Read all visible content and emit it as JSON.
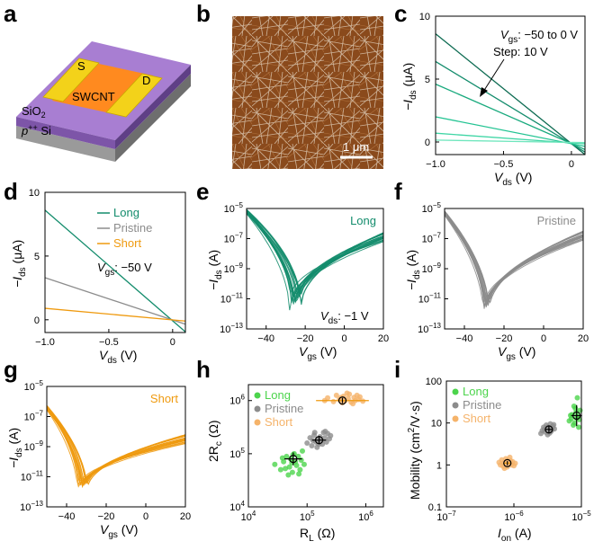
{
  "colors": {
    "long": "#138c6c",
    "pristine": "#8c8c8c",
    "short": "#ef9a0f",
    "long_point": "#4cd44c",
    "pristine_point": "#8c8c8c",
    "short_point": "#f5b36a",
    "substrate": "#b4b4b4",
    "oxide": "#a87ed2",
    "swcnt": "#ff8a1f",
    "electrode": "#f3d21a"
  },
  "panels": {
    "a": {
      "label": "a",
      "texts": {
        "source": "S",
        "drain": "D",
        "channel": "SWCNT",
        "oxide": "SiO",
        "oxide_sub": "2",
        "substrate_pre": "p",
        "substrate_sup": "++",
        "substrate_post": " Si"
      }
    },
    "b": {
      "label": "b",
      "scale_bar": "1 μm"
    },
    "c": {
      "label": "c"
    },
    "d": {
      "label": "d"
    },
    "e": {
      "label": "e"
    },
    "f": {
      "label": "f"
    },
    "g": {
      "label": "g"
    },
    "h": {
      "label": "h"
    },
    "i": {
      "label": "i"
    }
  },
  "chart_data": [
    {
      "id": "c",
      "type": "line",
      "xlabel": "V",
      "xlabel_sub": "ds",
      "xlabel_unit": " (V)",
      "ylabel_pre": "−I",
      "ylabel_sub": "ds",
      "ylabel_unit": " (μA)",
      "xlim": [
        -1.0,
        0.1
      ],
      "ylim": [
        -1,
        10
      ],
      "xticks": [
        -1.0,
        -0.5,
        0
      ],
      "xtick_labels": [
        "−1.0",
        "−0.5",
        "0"
      ],
      "yticks": [
        0,
        5,
        10
      ],
      "ytick_labels": [
        "0",
        "5",
        "10"
      ],
      "annotation_line1_pre": "V",
      "annotation_line1_sub": "gs",
      "annotation_line1_post": ": −50 to 0 V",
      "annotation_line2": "Step: 10 V",
      "series": [
        {
          "name": "Vgs −50 V",
          "x": [
            -1.0,
            0.1
          ],
          "y": [
            8.6,
            -1.0
          ],
          "color": "#0d6b52"
        },
        {
          "name": "Vgs −40 V",
          "x": [
            -1.0,
            0.1
          ],
          "y": [
            6.4,
            -0.8
          ],
          "color": "#138c6c"
        },
        {
          "name": "Vgs −30 V",
          "x": [
            -1.0,
            0.1
          ],
          "y": [
            4.6,
            -0.6
          ],
          "color": "#1aaa7e"
        },
        {
          "name": "Vgs −20 V",
          "x": [
            -1.0,
            0.1
          ],
          "y": [
            2.0,
            -0.35
          ],
          "color": "#24c493"
        },
        {
          "name": "Vgs −10 V",
          "x": [
            -1.0,
            0.1
          ],
          "y": [
            0.7,
            -0.15
          ],
          "color": "#3fd6a5"
        },
        {
          "name": "Vgs 0 V",
          "x": [
            -1.0,
            0.1
          ],
          "y": [
            0.15,
            -0.05
          ],
          "color": "#6fe6bd"
        }
      ]
    },
    {
      "id": "d",
      "type": "line",
      "xlabel": "V",
      "xlabel_sub": "ds",
      "xlabel_unit": " (V)",
      "ylabel_pre": "−I",
      "ylabel_sub": "ds",
      "ylabel_unit": " (μA)",
      "xlim": [
        -1.0,
        0.1
      ],
      "ylim": [
        -1,
        10
      ],
      "xticks": [
        -1.0,
        -0.5,
        0
      ],
      "xtick_labels": [
        "−1.0",
        "−0.5",
        "0"
      ],
      "yticks": [
        0,
        5,
        10
      ],
      "ytick_labels": [
        "0",
        "5",
        "10"
      ],
      "annotation_pre": "V",
      "annotation_sub": "gs",
      "annotation_post": ": −50 V",
      "series": [
        {
          "name": "Long",
          "x": [
            -1.0,
            0.1
          ],
          "y": [
            8.6,
            -0.95
          ],
          "color": "#138c6c"
        },
        {
          "name": "Pristine",
          "x": [
            -1.0,
            0.1
          ],
          "y": [
            3.3,
            -0.35
          ],
          "color": "#8c8c8c"
        },
        {
          "name": "Short",
          "x": [
            -1.0,
            0.1
          ],
          "y": [
            0.9,
            -0.1
          ],
          "color": "#ef9a0f"
        }
      ]
    },
    {
      "id": "e",
      "type": "line",
      "scale": "log-y",
      "title": "Long",
      "title_color": "#138c6c",
      "xlabel": "V",
      "xlabel_sub": "gs",
      "xlabel_unit": " (V)",
      "ylabel_pre": "−I",
      "ylabel_sub": "ds",
      "ylabel_unit": " (A)",
      "xlim": [
        -50,
        20
      ],
      "ylim_exp": [
        -13,
        -5
      ],
      "xticks": [
        -40,
        -20,
        0,
        20
      ],
      "xtick_labels": [
        "−40",
        "−20",
        "0",
        "20"
      ],
      "ytick_exps": [
        -5,
        -7,
        -9,
        -11,
        -13
      ],
      "annotation_pre": "V",
      "annotation_sub": "ds",
      "annotation_post": ": −1 V",
      "curve": {
        "left_exp": -5.2,
        "min_x": -25,
        "min_exp": -11.3,
        "right_exp": -6.9,
        "color": "#138c6c",
        "count": 20,
        "spread_x": 6,
        "spread_min": 0.9
      }
    },
    {
      "id": "f",
      "type": "line",
      "scale": "log-y",
      "title": "Pristine",
      "title_color": "#8c8c8c",
      "xlabel": "V",
      "xlabel_sub": "gs",
      "xlabel_unit": " (V)",
      "ylabel_pre": "−I",
      "ylabel_sub": "ds",
      "ylabel_unit": " (A)",
      "xlim": [
        -50,
        20
      ],
      "ylim_exp": [
        -13,
        -5
      ],
      "xticks": [
        -40,
        -20,
        0,
        20
      ],
      "xtick_labels": [
        "−40",
        "−20",
        "0",
        "20"
      ],
      "ytick_exps": [
        -5,
        -7,
        -9,
        -11,
        -13
      ],
      "curve": {
        "left_exp": -5.3,
        "min_x": -29,
        "min_exp": -11.7,
        "right_exp": -6.8,
        "color": "#8c8c8c",
        "count": 20,
        "spread_x": 3,
        "spread_min": 0.4
      }
    },
    {
      "id": "g",
      "type": "line",
      "scale": "log-y",
      "title": "Short",
      "title_color": "#ef9a0f",
      "xlabel": "V",
      "xlabel_sub": "gs",
      "xlabel_unit": " (V)",
      "ylabel_pre": "−I",
      "ylabel_sub": "ds",
      "ylabel_unit": " (A)",
      "xlim": [
        -50,
        20
      ],
      "ylim_exp": [
        -13,
        -5
      ],
      "xticks": [
        -40,
        -20,
        0,
        20
      ],
      "xtick_labels": [
        "−40",
        "−20",
        "0",
        "20"
      ],
      "ytick_exps": [
        -5,
        -7,
        -9,
        -11,
        -13
      ],
      "curve": {
        "left_exp": -6.4,
        "min_x": -32,
        "min_exp": -11.8,
        "right_exp": -8.5,
        "color": "#ef9a0f",
        "count": 20,
        "spread_x": 5,
        "spread_min": 0.3
      }
    },
    {
      "id": "h",
      "type": "scatter",
      "scale": "log-log",
      "xlabel": "R",
      "xlabel_sub": "L",
      "xlabel_unit": " (Ω)",
      "ylabel": "2R",
      "ylabel_sub": "c",
      "ylabel_unit": " (Ω)",
      "xlim_exp": [
        4,
        6.3
      ],
      "ylim_exp": [
        4,
        6.3
      ],
      "xtick_exps": [
        4,
        5,
        6
      ],
      "ytick_exps": [
        4,
        5,
        6
      ],
      "legend": [
        "Long",
        "Pristine",
        "Short"
      ],
      "legend_position": "top-left",
      "series": [
        {
          "name": "Long",
          "color": "#4cd44c",
          "mean_x": 58000,
          "mean_y": 80000,
          "xerr_exp": 0.15,
          "yerr_exp": 0.12,
          "points": [
            [
              4.45,
              4.8
            ],
            [
              4.55,
              4.7
            ],
            [
              4.6,
              4.85
            ],
            [
              4.65,
              4.95
            ],
            [
              4.7,
              4.75
            ],
            [
              4.72,
              4.9
            ],
            [
              4.75,
              4.65
            ],
            [
              4.78,
              5.0
            ],
            [
              4.8,
              4.85
            ],
            [
              4.82,
              4.78
            ],
            [
              4.85,
              4.95
            ],
            [
              4.88,
              4.7
            ],
            [
              4.9,
              4.88
            ],
            [
              4.92,
              5.05
            ],
            [
              4.68,
              4.6
            ],
            [
              4.58,
              4.92
            ],
            [
              4.95,
              4.8
            ],
            [
              4.76,
              4.98
            ],
            [
              4.63,
              4.72
            ],
            [
              4.86,
              4.62
            ],
            [
              4.74,
              4.83
            ]
          ]
        },
        {
          "name": "Pristine",
          "color": "#8c8c8c",
          "mean_x": 160000,
          "mean_y": 180000,
          "xerr_exp": 0.12,
          "yerr_exp": 0.08,
          "points": [
            [
              5.0,
              5.2
            ],
            [
              5.05,
              5.3
            ],
            [
              5.08,
              5.15
            ],
            [
              5.1,
              5.25
            ],
            [
              5.12,
              5.35
            ],
            [
              5.15,
              5.22
            ],
            [
              5.18,
              5.28
            ],
            [
              5.2,
              5.18
            ],
            [
              5.22,
              5.32
            ],
            [
              5.25,
              5.25
            ],
            [
              5.28,
              5.4
            ],
            [
              5.3,
              5.3
            ],
            [
              5.33,
              5.22
            ],
            [
              5.35,
              5.38
            ],
            [
              5.38,
              5.28
            ],
            [
              5.4,
              5.34
            ],
            [
              5.17,
              5.12
            ],
            [
              5.26,
              5.18
            ],
            [
              5.13,
              5.4
            ],
            [
              5.31,
              5.42
            ]
          ]
        },
        {
          "name": "Short",
          "color": "#f5b36a",
          "mean_x": 400000,
          "mean_y": 1000000,
          "xerr_exp": 0.45,
          "yerr_exp": 0.05,
          "points": [
            [
              5.3,
              6.0
            ],
            [
              5.35,
              6.05
            ],
            [
              5.45,
              5.98
            ],
            [
              5.5,
              6.1
            ],
            [
              5.55,
              6.02
            ],
            [
              5.6,
              5.96
            ],
            [
              5.62,
              6.08
            ],
            [
              5.65,
              6.0
            ],
            [
              5.7,
              6.04
            ],
            [
              5.72,
              6.12
            ],
            [
              5.75,
              5.97
            ],
            [
              5.8,
              6.06
            ],
            [
              5.82,
              6.0
            ],
            [
              5.85,
              6.1
            ],
            [
              5.88,
              6.02
            ],
            [
              5.9,
              6.07
            ],
            [
              5.95,
              5.99
            ],
            [
              5.68,
              6.14
            ],
            [
              5.58,
              6.06
            ],
            [
              5.78,
              5.94
            ]
          ]
        }
      ]
    },
    {
      "id": "i",
      "type": "scatter",
      "scale": "log-log",
      "xlabel": "I",
      "xlabel_sub": "on",
      "xlabel_unit": " (A)",
      "ylabel": "Mobility (cm",
      "ylabel_sup": "2",
      "ylabel_unit": "/V·s)",
      "xlim_exp": [
        -7,
        -5
      ],
      "ylim_exp": [
        -1,
        2
      ],
      "xtick_exps": [
        -7,
        -6,
        -5
      ],
      "ytick_values": [
        0.1,
        1,
        10,
        100
      ],
      "ytick_labels": [
        "0.1",
        "1",
        "10",
        "100"
      ],
      "legend": [
        "Long",
        "Pristine",
        "Short"
      ],
      "legend_position": "top-left",
      "series": [
        {
          "name": "Long",
          "color": "#4cd44c",
          "mean_x": 8.5e-06,
          "mean_y": 15,
          "xerr_exp": 0.08,
          "yerr_exp": 0.25,
          "points": [
            [
              -5.1,
              1.0
            ],
            [
              -5.15,
              1.1
            ],
            [
              -5.08,
              1.25
            ],
            [
              -5.05,
              1.15
            ],
            [
              -5.12,
              0.95
            ],
            [
              -5.02,
              1.3
            ],
            [
              -5.18,
              1.05
            ],
            [
              -5.06,
              1.6
            ],
            [
              -5.14,
              1.2
            ],
            [
              -5.03,
              1.08
            ],
            [
              -5.09,
              1.35
            ],
            [
              -5.16,
              1.18
            ],
            [
              -5.04,
              0.9
            ],
            [
              -5.11,
              1.4
            ],
            [
              -5.07,
              1.12
            ]
          ]
        },
        {
          "name": "Pristine",
          "color": "#8c8c8c",
          "mean_x": 3.3e-06,
          "mean_y": 7,
          "xerr_exp": 0.06,
          "yerr_exp": 0.08,
          "points": [
            [
              -5.6,
              0.75
            ],
            [
              -5.55,
              0.85
            ],
            [
              -5.5,
              0.9
            ],
            [
              -5.45,
              0.8
            ],
            [
              -5.52,
              0.95
            ],
            [
              -5.48,
              0.88
            ],
            [
              -5.42,
              0.92
            ],
            [
              -5.58,
              0.82
            ],
            [
              -5.46,
              0.98
            ],
            [
              -5.4,
              0.86
            ],
            [
              -5.53,
              0.78
            ],
            [
              -5.44,
              0.84
            ],
            [
              -5.5,
              0.72
            ],
            [
              -5.56,
              0.9
            ],
            [
              -5.47,
              0.76
            ],
            [
              -5.41,
              0.96
            ]
          ]
        },
        {
          "name": "Short",
          "color": "#f5b36a",
          "mean_x": 8e-07,
          "mean_y": 1.1,
          "xerr_exp": 0.06,
          "yerr_exp": 0.05,
          "points": [
            [
              -6.2,
              0.0
            ],
            [
              -6.15,
              0.05
            ],
            [
              -6.1,
              -0.05
            ],
            [
              -6.05,
              0.1
            ],
            [
              -6.12,
              0.15
            ],
            [
              -6.08,
              0.02
            ],
            [
              -6.02,
              0.08
            ],
            [
              -6.18,
              0.12
            ],
            [
              -6.0,
              -0.02
            ],
            [
              -6.14,
              -0.08
            ],
            [
              -6.06,
              0.18
            ],
            [
              -6.22,
              0.06
            ],
            [
              -6.04,
              0.0
            ],
            [
              -6.1,
              0.1
            ],
            [
              -6.16,
              -0.03
            ],
            [
              -5.98,
              0.04
            ]
          ]
        }
      ]
    }
  ]
}
